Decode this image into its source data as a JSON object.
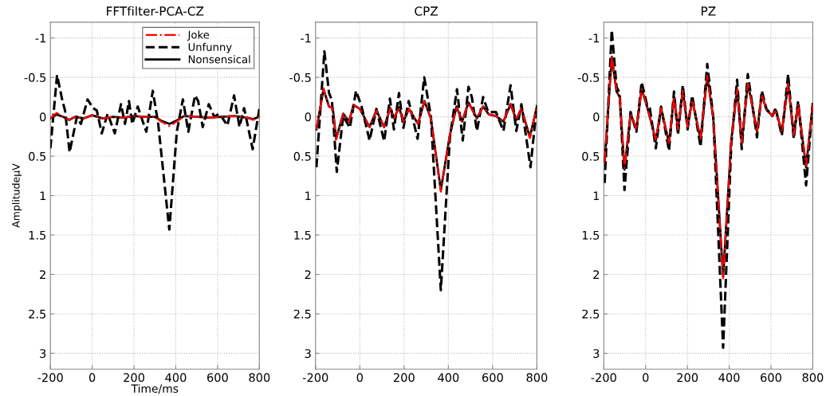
{
  "chart_data": [
    {
      "type": "line",
      "title": "FFTfilter-PCA-CZ",
      "xlabel": "Time/ms",
      "ylabel": "AmplitudeμV",
      "xlim": [
        -200,
        800
      ],
      "ylim": [
        3.2,
        -1.2
      ],
      "xticks": [
        -200,
        0,
        200,
        400,
        600,
        800
      ],
      "yticks": [
        -1,
        -0.5,
        0,
        0.5,
        1,
        1.5,
        2,
        2.5,
        3
      ],
      "grid": true,
      "legend": "top right",
      "series": [
        {
          "name": "Joke",
          "color": "#ff0000",
          "line_style": "dashdot",
          "x": [
            -200,
            -170,
            -140,
            -110,
            -80,
            -40,
            0,
            50,
            100,
            150,
            200,
            250,
            300,
            330,
            370,
            410,
            440,
            500,
            560,
            620,
            680,
            740,
            770,
            800
          ],
          "values": [
            0.02,
            -0.05,
            0.0,
            0.04,
            0.0,
            0.02,
            -0.02,
            0.02,
            0.0,
            0.01,
            -0.01,
            0.0,
            0.0,
            0.06,
            0.12,
            0.05,
            -0.01,
            0.0,
            0.01,
            0.0,
            -0.01,
            0.01,
            0.04,
            0.0
          ]
        },
        {
          "name": "Unfunny",
          "color": "#000000",
          "line_style": "dashed",
          "x": [
            -200,
            -168,
            -143,
            -130,
            -108,
            -73,
            -54,
            -22,
            4,
            22,
            46,
            74,
            108,
            138,
            157,
            176,
            192,
            218,
            259,
            290,
            316,
            369,
            405,
            434,
            460,
            492,
            507,
            529,
            558,
            584,
            609,
            647,
            679,
            705,
            727,
            768,
            800
          ],
          "values": [
            0.4,
            -0.53,
            -0.21,
            -0.08,
            0.45,
            0.0,
            0.09,
            -0.22,
            -0.11,
            -0.08,
            0.21,
            -0.04,
            0.21,
            -0.16,
            0.09,
            -0.2,
            0.09,
            -0.13,
            0.19,
            -0.33,
            0.09,
            1.43,
            0.19,
            -0.22,
            0.19,
            -0.27,
            -0.2,
            0.13,
            -0.16,
            0.0,
            -0.04,
            0.11,
            -0.27,
            0.13,
            -0.11,
            0.41,
            -0.1
          ]
        },
        {
          "name": "Nonsensical",
          "color": "#000000",
          "line_style": "solid",
          "x": [
            -200,
            -170,
            -140,
            -110,
            -80,
            -40,
            0,
            50,
            100,
            150,
            200,
            250,
            300,
            330,
            370,
            410,
            440,
            500,
            560,
            620,
            680,
            740,
            770,
            800
          ],
          "values": [
            0.02,
            -0.03,
            0.0,
            0.04,
            0.0,
            0.02,
            -0.02,
            0.02,
            0.0,
            0.01,
            -0.01,
            0.0,
            0.0,
            0.05,
            0.09,
            0.04,
            -0.01,
            0.0,
            0.01,
            0.0,
            -0.01,
            0.01,
            0.03,
            0.0
          ]
        }
      ]
    },
    {
      "type": "line",
      "title": "CPZ",
      "xlim": [
        -200,
        800
      ],
      "ylim": [
        3.2,
        -1.2
      ],
      "xticks": [
        -200,
        0,
        200,
        400,
        600,
        800
      ],
      "yticks": [
        -1,
        -0.5,
        0,
        0.5,
        1,
        1.5,
        2,
        2.5,
        3
      ],
      "grid": true,
      "series": [
        {
          "color": "#ff0000",
          "line_style": "dashdot",
          "x": [
            -196,
            -164,
            -139,
            -122,
            -107,
            -75,
            -49,
            -28,
            0,
            44,
            75,
            110,
            138,
            155,
            177,
            197,
            222,
            263,
            292,
            321,
            366,
            407,
            437,
            462,
            491,
            529,
            557,
            583,
            615,
            649,
            681,
            707,
            730,
            768,
            800
          ],
          "values": [
            0.16,
            -0.36,
            -0.13,
            -0.11,
            0.29,
            -0.04,
            0.06,
            -0.15,
            -0.1,
            0.13,
            -0.08,
            0.13,
            -0.11,
            0.02,
            -0.12,
            0.06,
            -0.1,
            0.09,
            -0.2,
            0.02,
            0.95,
            0.23,
            -0.13,
            0.06,
            -0.18,
            0.02,
            -0.13,
            -0.03,
            -0.01,
            0.06,
            -0.17,
            0.04,
            -0.11,
            0.27,
            -0.13
          ]
        },
        {
          "color": "#000000",
          "line_style": "dashed",
          "x": [
            -196,
            -160,
            -139,
            -126,
            -104,
            -75,
            -45,
            -17,
            8,
            44,
            75,
            110,
            136,
            154,
            177,
            197,
            221,
            261,
            291,
            321,
            366,
            407,
            439,
            465,
            491,
            506,
            529,
            557,
            580,
            615,
            649,
            681,
            707,
            730,
            771,
            800
          ],
          "values": [
            0.64,
            -0.83,
            -0.3,
            -0.21,
            0.7,
            -0.01,
            0.14,
            -0.33,
            -0.13,
            0.3,
            -0.1,
            0.31,
            -0.23,
            0.16,
            -0.3,
            0.14,
            -0.2,
            0.28,
            -0.5,
            -0.01,
            2.2,
            0.26,
            -0.35,
            0.3,
            -0.38,
            -0.25,
            0.18,
            -0.25,
            -0.06,
            -0.06,
            0.18,
            -0.4,
            0.18,
            -0.16,
            0.64,
            -0.15
          ]
        },
        {
          "color": "#000000",
          "line_style": "solid",
          "x": [
            -196,
            -164,
            -139,
            -122,
            -107,
            -75,
            -49,
            -28,
            0,
            44,
            75,
            110,
            138,
            155,
            177,
            197,
            222,
            263,
            292,
            321,
            366,
            407,
            437,
            462,
            491,
            529,
            557,
            583,
            615,
            649,
            681,
            707,
            730,
            768,
            800
          ],
          "values": [
            0.16,
            -0.35,
            -0.13,
            -0.11,
            0.28,
            -0.04,
            0.06,
            -0.15,
            -0.1,
            0.13,
            -0.08,
            0.13,
            -0.11,
            0.02,
            -0.12,
            0.06,
            -0.1,
            0.09,
            -0.2,
            0.02,
            0.93,
            0.23,
            -0.13,
            0.06,
            -0.18,
            0.02,
            -0.13,
            -0.03,
            -0.01,
            0.06,
            -0.16,
            0.04,
            -0.11,
            0.26,
            -0.13
          ]
        }
      ]
    },
    {
      "type": "line",
      "title": "PZ",
      "xlim": [
        -200,
        800
      ],
      "ylim": [
        3.2,
        -1.2
      ],
      "xticks": [
        -200,
        0,
        200,
        400,
        600,
        800
      ],
      "yticks": [
        -1,
        -0.5,
        0,
        0.5,
        1,
        1.5,
        2,
        2.5,
        3
      ],
      "grid": true,
      "series": [
        {
          "color": "#ff0000",
          "line_style": "dashdot",
          "x": [
            -196,
            -162,
            -139,
            -124,
            -101,
            -72,
            -44,
            -19,
            7,
            49,
            74,
            112,
            136,
            155,
            178,
            201,
            223,
            263,
            295,
            324,
            371,
            410,
            438,
            460,
            489,
            508,
            533,
            556,
            578,
            607,
            622,
            652,
            682,
            709,
            730,
            768,
            800
          ],
          "values": [
            0.58,
            -0.78,
            -0.32,
            -0.25,
            0.65,
            -0.04,
            0.16,
            -0.35,
            -0.13,
            0.3,
            -0.11,
            0.33,
            -0.25,
            0.16,
            -0.33,
            0.13,
            -0.21,
            0.28,
            -0.52,
            0.02,
            2.05,
            0.3,
            -0.35,
            0.33,
            -0.42,
            -0.18,
            0.19,
            -0.28,
            -0.09,
            -0.01,
            -0.09,
            0.19,
            -0.42,
            0.23,
            -0.16,
            0.62,
            -0.16
          ]
        },
        {
          "color": "#000000",
          "line_style": "dashed",
          "x": [
            -196,
            -162,
            -139,
            -124,
            -101,
            -72,
            -44,
            -19,
            7,
            20,
            49,
            74,
            112,
            136,
            155,
            178,
            201,
            223,
            263,
            295,
            324,
            371,
            410,
            438,
            460,
            489,
            508,
            533,
            556,
            578,
            607,
            622,
            652,
            682,
            709,
            730,
            768,
            800
          ],
          "values": [
            0.84,
            -1.1,
            -0.38,
            -0.3,
            0.93,
            -0.06,
            0.19,
            -0.44,
            -0.15,
            -0.11,
            0.4,
            -0.13,
            0.43,
            -0.32,
            0.23,
            -0.4,
            0.16,
            -0.27,
            0.38,
            -0.67,
            0.01,
            2.93,
            0.35,
            -0.47,
            0.41,
            -0.54,
            -0.2,
            0.26,
            -0.33,
            -0.1,
            -0.01,
            -0.11,
            0.24,
            -0.54,
            0.28,
            -0.2,
            0.87,
            -0.18
          ]
        },
        {
          "color": "#000000",
          "line_style": "solid",
          "x": [
            -196,
            -162,
            -139,
            -124,
            -101,
            -72,
            -44,
            -19,
            7,
            49,
            74,
            112,
            136,
            155,
            178,
            201,
            223,
            263,
            295,
            324,
            371,
            410,
            438,
            460,
            489,
            508,
            533,
            556,
            578,
            607,
            622,
            652,
            682,
            709,
            730,
            768,
            800
          ],
          "values": [
            0.57,
            -0.76,
            -0.32,
            -0.25,
            0.67,
            -0.04,
            0.16,
            -0.35,
            -0.13,
            0.3,
            -0.11,
            0.33,
            -0.25,
            0.16,
            -0.33,
            0.13,
            -0.21,
            0.28,
            -0.52,
            0.02,
            2.03,
            0.3,
            -0.35,
            0.33,
            -0.42,
            -0.18,
            0.19,
            -0.28,
            -0.09,
            -0.01,
            -0.09,
            0.19,
            -0.42,
            0.23,
            -0.16,
            0.64,
            -0.16
          ]
        }
      ]
    }
  ]
}
